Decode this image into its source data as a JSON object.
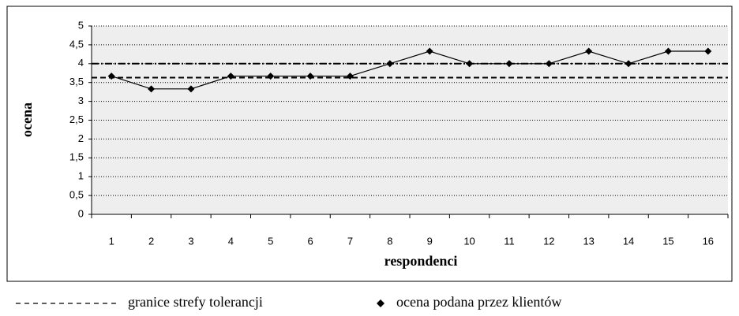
{
  "chart_data": {
    "type": "line",
    "x_label": "respondenci",
    "y_label": "ocena",
    "categories": [
      "1",
      "2",
      "3",
      "4",
      "5",
      "6",
      "7",
      "8",
      "9",
      "10",
      "11",
      "12",
      "13",
      "14",
      "15",
      "16"
    ],
    "series": [
      {
        "name": "ocena podana przez klientów",
        "color": "#000000",
        "values": [
          3.67,
          3.33,
          3.33,
          3.67,
          3.67,
          3.67,
          3.67,
          4,
          4.33,
          4,
          4,
          4,
          4.33,
          4,
          4.33,
          4.33
        ]
      }
    ],
    "tolerance_bounds": {
      "name": "granice strefy tolerancji",
      "color": "#000000",
      "values": [
        3.63,
        4
      ]
    },
    "ylim": [
      0,
      5
    ],
    "yticks": [
      0,
      {
        "value": 0.5,
        "label": "0,5"
      },
      1,
      {
        "value": 1.5,
        "label": "1,5"
      },
      2,
      {
        "value": 2.5,
        "label": "2,5"
      },
      3,
      {
        "value": 3.5,
        "label": "3,5"
      },
      4,
      {
        "value": 4.5,
        "label": "4,5"
      },
      5
    ],
    "grid": true
  }
}
